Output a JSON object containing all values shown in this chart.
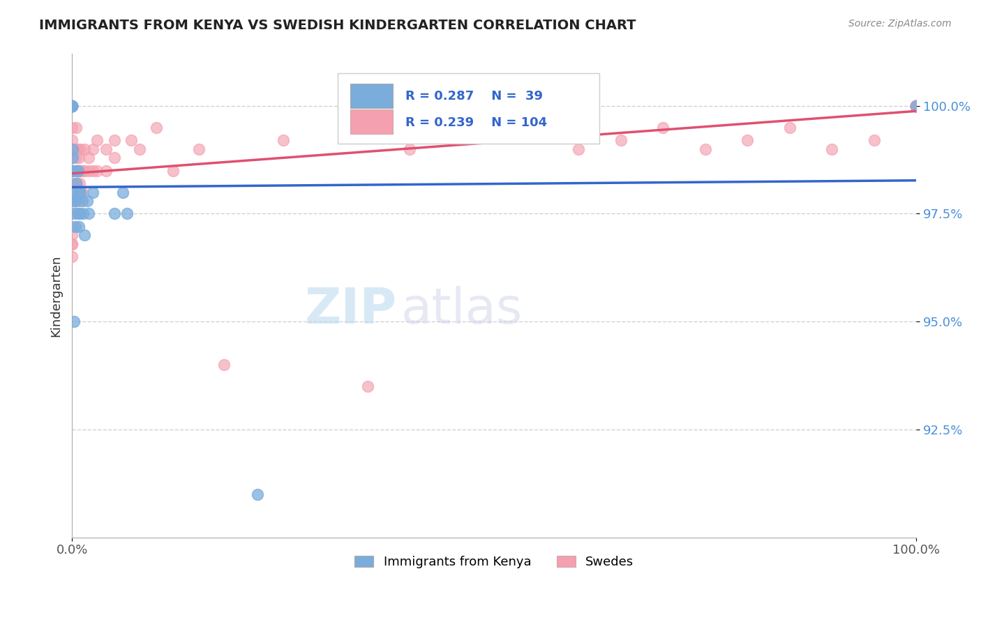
{
  "title": "IMMIGRANTS FROM KENYA VS SWEDISH KINDERGARTEN CORRELATION CHART",
  "source": "Source: ZipAtlas.com",
  "ylabel": "Kindergarten",
  "legend_label_blue": "Immigrants from Kenya",
  "legend_label_pink": "Swedes",
  "blue_color": "#7aaddc",
  "pink_color": "#f4a0b0",
  "trendline_blue": "#3366cc",
  "trendline_pink": "#e05070",
  "watermark_zip": "ZIP",
  "watermark_atlas": "atlas",
  "blue_scatter_x": [
    0.0,
    0.0,
    0.0,
    0.0,
    0.0,
    0.0,
    0.0,
    0.0,
    0.001,
    0.001,
    0.001,
    0.002,
    0.002,
    0.003,
    0.003,
    0.004,
    0.004,
    0.005,
    0.005,
    0.006,
    0.007,
    0.008,
    0.012,
    0.02,
    0.025,
    0.05,
    0.06,
    0.065,
    0.22,
    0.007,
    0.009,
    1.0,
    0.01,
    0.013,
    0.015,
    0.018,
    0.008,
    0.003,
    0.002
  ],
  "blue_scatter_y": [
    100.0,
    100.0,
    100.0,
    100.0,
    100.0,
    100.0,
    100.0,
    100.0,
    99.0,
    98.8,
    98.5,
    98.5,
    98.0,
    97.8,
    97.5,
    97.8,
    97.2,
    98.2,
    97.8,
    98.5,
    97.5,
    98.0,
    97.8,
    97.5,
    98.0,
    97.5,
    98.0,
    97.5,
    91.0,
    98.5,
    97.5,
    100.0,
    98.0,
    97.5,
    97.0,
    97.8,
    97.2,
    97.8,
    95.0
  ],
  "pink_scatter_x": [
    0.0,
    0.0,
    0.0,
    0.0,
    0.0,
    0.0,
    0.0,
    0.0,
    0.0,
    0.0,
    0.0,
    0.0,
    0.0,
    0.0,
    0.0,
    0.0,
    0.0,
    0.0,
    0.0,
    0.0,
    0.005,
    0.005,
    0.005,
    0.006,
    0.006,
    0.007,
    0.007,
    0.007,
    0.008,
    0.008,
    0.009,
    0.009,
    0.01,
    0.01,
    0.01,
    0.012,
    0.012,
    0.015,
    0.015,
    0.02,
    0.02,
    0.025,
    0.025,
    0.03,
    0.03,
    0.04,
    0.04,
    0.05,
    0.05,
    0.07,
    0.08,
    0.1,
    0.12,
    0.15,
    0.18,
    0.25,
    0.35,
    0.4,
    0.6,
    0.65,
    0.7,
    0.75,
    0.8,
    0.85,
    0.9,
    0.95,
    1.0,
    1.0,
    1.0,
    1.0,
    1.0,
    1.0,
    1.0,
    1.0,
    1.0,
    1.0,
    1.0,
    1.0,
    1.0,
    1.0,
    1.0,
    1.0,
    1.0,
    1.0,
    1.0,
    1.0,
    1.0,
    1.0,
    1.0,
    1.0,
    1.0,
    1.0,
    1.0,
    1.0,
    1.0,
    1.0,
    1.0,
    1.0,
    1.0,
    1.0,
    1.0,
    1.0,
    1.0,
    1.0
  ],
  "pink_scatter_y": [
    100.0,
    100.0,
    100.0,
    100.0,
    100.0,
    99.5,
    99.2,
    98.8,
    98.5,
    98.2,
    98.0,
    97.8,
    97.5,
    97.2,
    97.0,
    96.8,
    96.5,
    99.0,
    98.5,
    96.8,
    99.5,
    99.0,
    98.8,
    98.5,
    98.2,
    99.0,
    98.5,
    98.0,
    98.8,
    98.5,
    98.2,
    97.8,
    99.0,
    98.5,
    98.0,
    98.5,
    98.0,
    99.0,
    98.5,
    98.8,
    98.5,
    99.0,
    98.5,
    99.2,
    98.5,
    99.0,
    98.5,
    99.2,
    98.8,
    99.2,
    99.0,
    99.5,
    98.5,
    99.0,
    94.0,
    99.2,
    93.5,
    99.0,
    99.0,
    99.2,
    99.5,
    99.0,
    99.2,
    99.5,
    99.0,
    99.2,
    100.0,
    100.0,
    100.0,
    100.0,
    100.0,
    100.0,
    100.0,
    100.0,
    100.0,
    100.0,
    100.0,
    100.0,
    100.0,
    100.0,
    100.0,
    100.0,
    100.0,
    100.0,
    100.0,
    100.0,
    100.0,
    100.0,
    100.0,
    100.0,
    100.0,
    100.0,
    100.0,
    100.0,
    100.0,
    100.0,
    100.0,
    100.0,
    100.0,
    100.0,
    100.0,
    100.0,
    100.0,
    100.0
  ]
}
